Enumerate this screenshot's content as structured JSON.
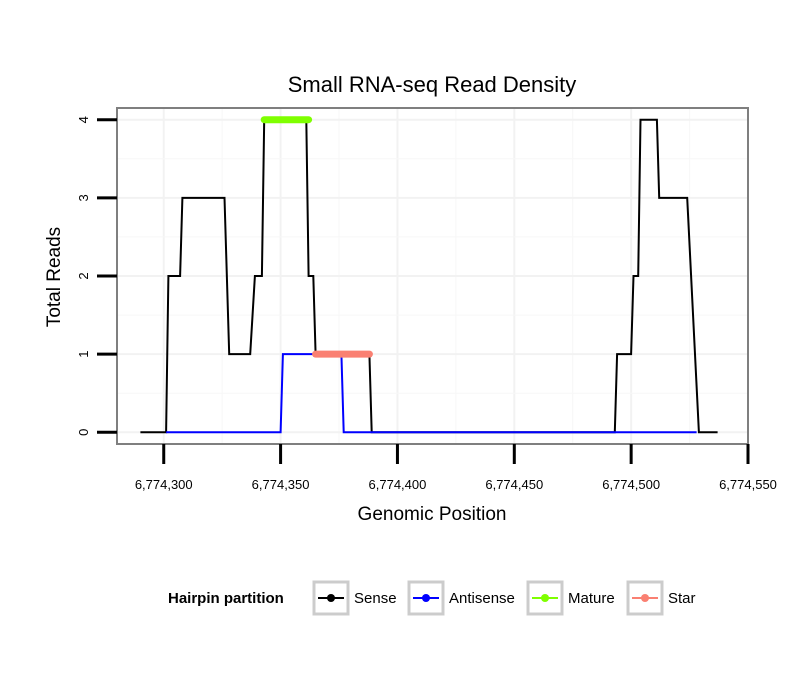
{
  "chart_data": {
    "type": "line",
    "title": "Small RNA-seq Read Density",
    "xlabel": "Genomic Position",
    "ylabel": "Total Reads",
    "xlim": [
      6774280,
      6774550
    ],
    "ylim": [
      -0.15,
      4.15
    ],
    "x_ticks": [
      6774300,
      6774350,
      6774400,
      6774450,
      6774500,
      6774550
    ],
    "x_tick_labels": [
      "6,774,300",
      "6,774,350",
      "6,774,400",
      "6,774,450",
      "6,774,500",
      "6,774,550"
    ],
    "y_ticks": [
      0,
      1,
      2,
      3,
      4
    ],
    "y_tick_labels": [
      "0",
      "1",
      "2",
      "3",
      "4"
    ],
    "grid": true,
    "legend": {
      "title": "Hairpin partition",
      "position": "bottom",
      "entries": [
        {
          "label": "Sense",
          "color": "#000000"
        },
        {
          "label": "Antisense",
          "color": "#0000ff"
        },
        {
          "label": "Mature",
          "color": "#7fff00"
        },
        {
          "label": "Star",
          "color": "#fa8072"
        }
      ]
    },
    "series": [
      {
        "name": "Sense",
        "color": "#000000",
        "x": [
          6774290,
          6774301,
          6774302,
          6774307,
          6774308,
          6774326,
          6774328,
          6774337,
          6774339,
          6774342,
          6774343,
          6774361,
          6774362,
          6774364,
          6774365,
          6774388,
          6774389,
          6774493,
          6774494,
          6774500,
          6774501,
          6774503,
          6774504,
          6774511,
          6774512,
          6774523,
          6774524,
          6774529,
          6774537
        ],
        "y": [
          0,
          0,
          2,
          2,
          3,
          3,
          1,
          1,
          2,
          2,
          4,
          4,
          2,
          2,
          1,
          1,
          0,
          0,
          1,
          1,
          2,
          2,
          4,
          4,
          3,
          3,
          3,
          0,
          0
        ]
      },
      {
        "name": "Antisense",
        "color": "#0000ff",
        "x": [
          6774301,
          6774350,
          6774351,
          6774376,
          6774377,
          6774528
        ],
        "y": [
          0,
          0,
          1,
          1,
          0,
          0
        ]
      },
      {
        "name": "Mature",
        "color": "#7fff00",
        "x": [
          6774343,
          6774362
        ],
        "y": [
          4,
          4
        ]
      },
      {
        "name": "Star",
        "color": "#fa8072",
        "x": [
          6774365,
          6774388
        ],
        "y": [
          1,
          1
        ]
      }
    ]
  }
}
